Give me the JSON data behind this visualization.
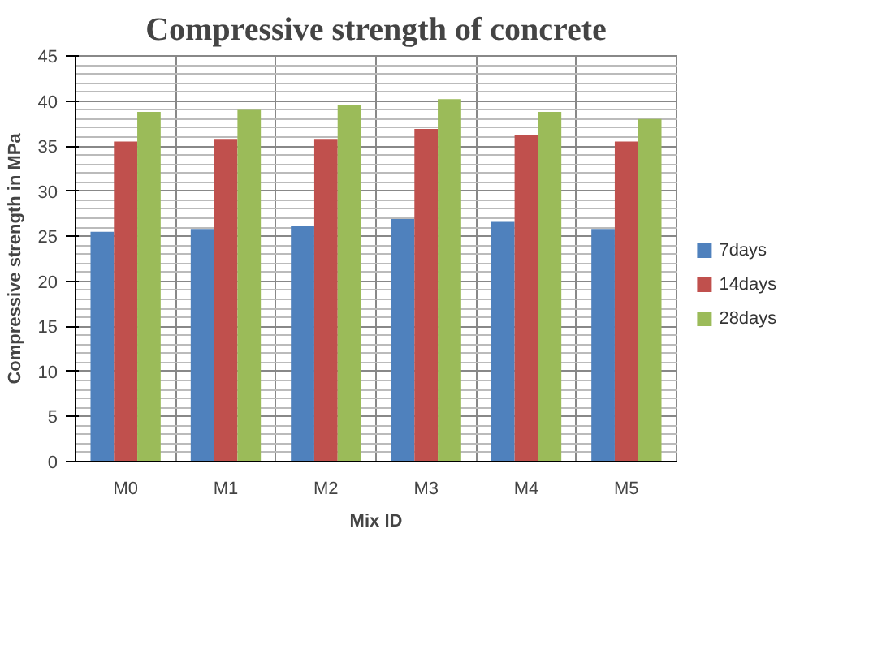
{
  "chart_data": {
    "type": "bar",
    "title": "Compressive strength of concrete",
    "xlabel": "Mix ID",
    "ylabel": "Compressive strength in MPa",
    "categories": [
      "M0",
      "M1",
      "M2",
      "M3",
      "M4",
      "M5"
    ],
    "series": [
      {
        "name": "7days",
        "color": "#4f81bd",
        "values": [
          25.5,
          25.8,
          26.2,
          26.9,
          26.6,
          25.8
        ]
      },
      {
        "name": "14days",
        "color": "#c0504d",
        "values": [
          35.5,
          35.8,
          35.8,
          36.9,
          36.2,
          35.5
        ]
      },
      {
        "name": "28days",
        "color": "#9bbb59",
        "values": [
          38.8,
          39.1,
          39.5,
          40.2,
          38.8,
          38.0
        ]
      }
    ],
    "ylim": [
      0,
      45
    ],
    "yticks": [
      0,
      5,
      10,
      15,
      20,
      25,
      30,
      35,
      40,
      45
    ],
    "grid": true,
    "legend": "right"
  }
}
